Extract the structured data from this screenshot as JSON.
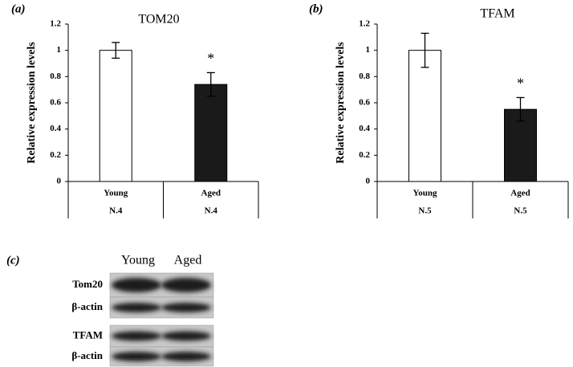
{
  "chart_data": [
    {
      "type": "bar",
      "panel_label": "(a)",
      "title": "TOM20",
      "y_label": "Relative expression levels",
      "categories": [
        "Young",
        "Aged"
      ],
      "values": [
        1.0,
        0.74
      ],
      "errors": [
        0.06,
        0.09
      ],
      "colors": [
        "#ffffff",
        "#1a1a1a"
      ],
      "sample_sizes": [
        "N.4",
        "N.4"
      ],
      "significance": [
        null,
        "*"
      ],
      "ylim": [
        0,
        1.2
      ],
      "yticks": [
        0,
        0.2,
        0.4,
        0.6,
        0.8,
        1,
        1.2
      ]
    },
    {
      "type": "bar",
      "panel_label": "(b)",
      "title": "TFAM",
      "y_label": "Relative expression levels",
      "categories": [
        "Young",
        "Aged"
      ],
      "values": [
        1.0,
        0.55
      ],
      "errors": [
        0.13,
        0.09
      ],
      "colors": [
        "#ffffff",
        "#1a1a1a"
      ],
      "sample_sizes": [
        "N.5",
        "N.5"
      ],
      "significance": [
        null,
        "*"
      ],
      "ylim": [
        0,
        1.2
      ],
      "yticks": [
        0,
        0.2,
        0.4,
        0.6,
        0.8,
        1,
        1.2
      ]
    }
  ],
  "blot": {
    "panel_label": "(c)",
    "lanes": [
      "Young",
      "Aged"
    ],
    "rows": [
      "Tom20",
      "β-actin",
      "TFAM",
      "β-actin"
    ]
  }
}
